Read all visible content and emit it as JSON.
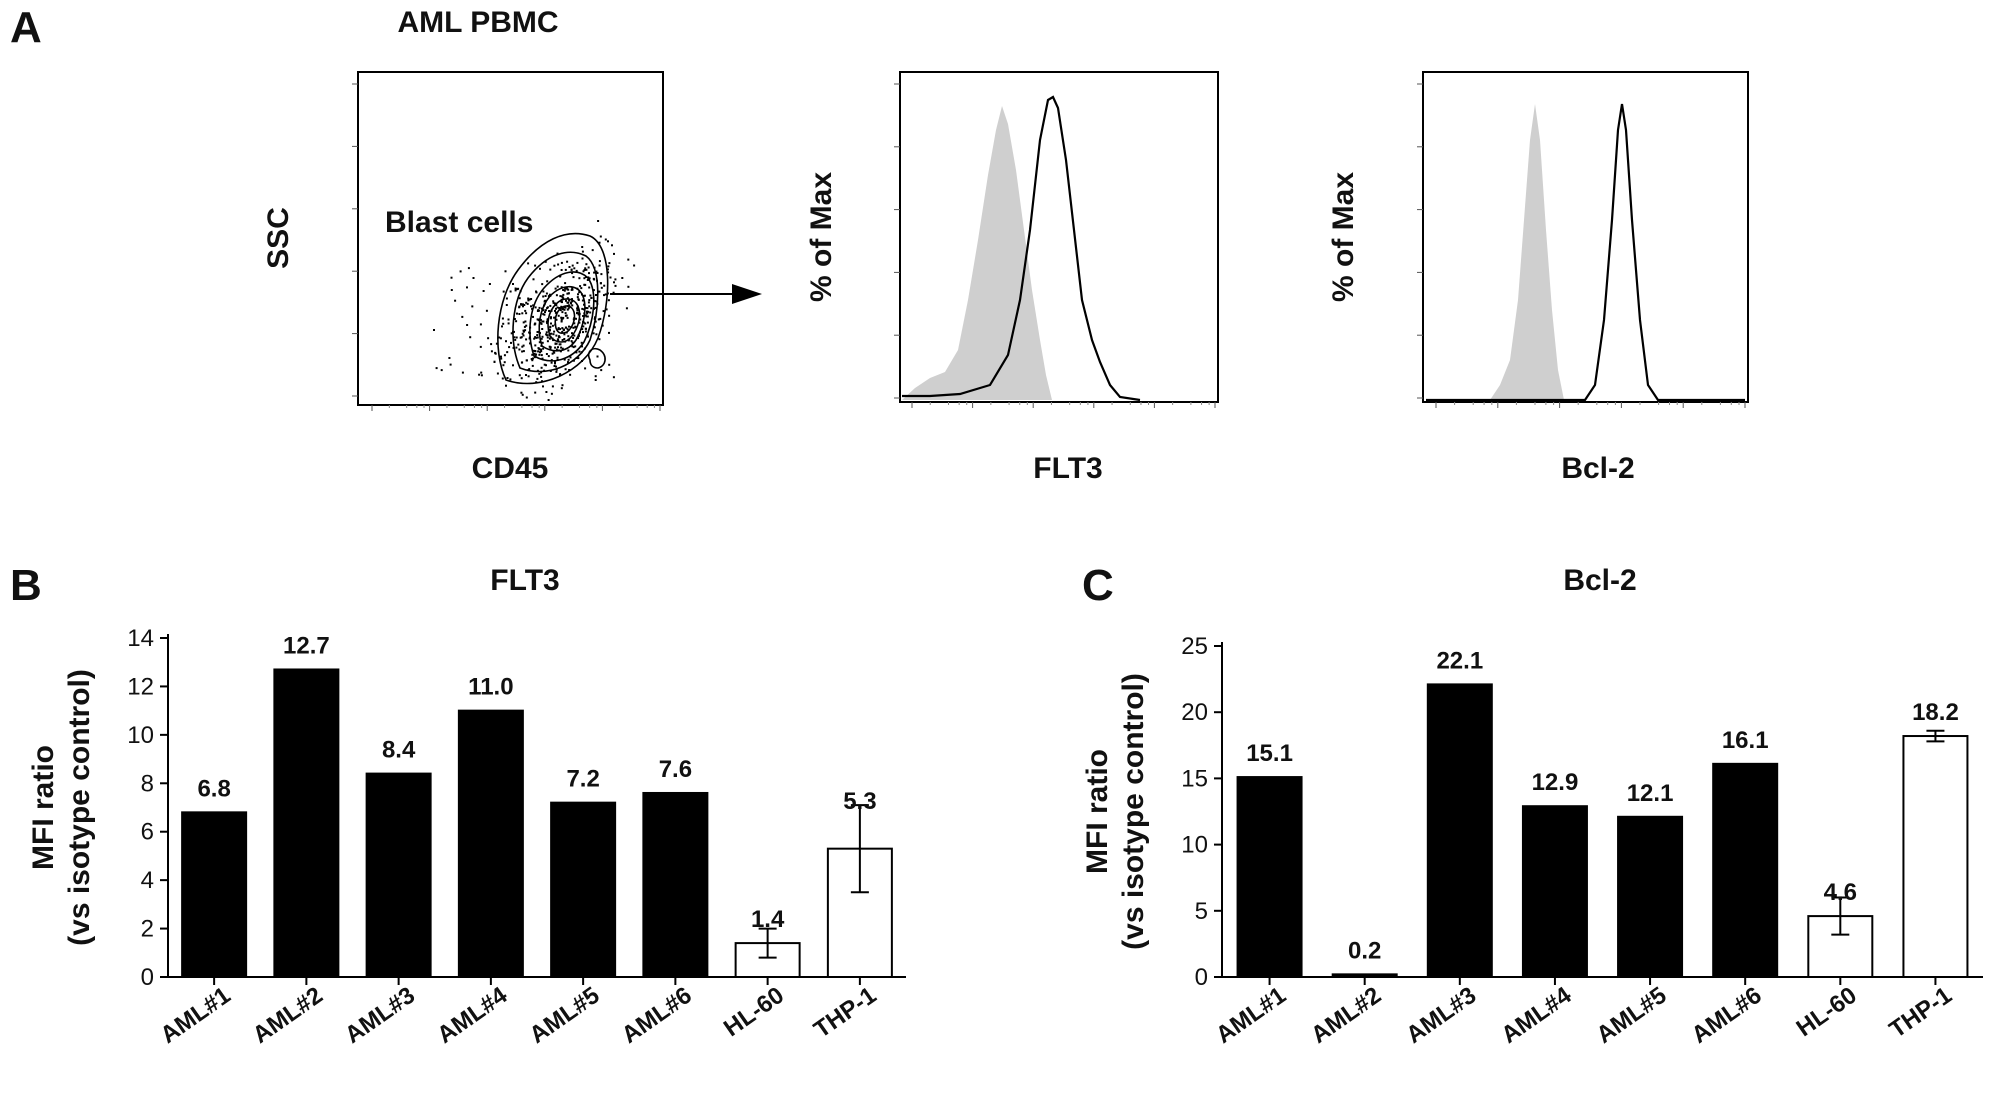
{
  "panel_letters": {
    "a": "A",
    "b": "B",
    "c": "C"
  },
  "facs": {
    "title": "AML PBMC",
    "gate_label": "Blast cells",
    "scatter": {
      "xlabel": "CD45",
      "ylabel": "SSC"
    },
    "hist1": {
      "xlabel": "FLT3",
      "ylabel": "% of Max"
    },
    "hist2": {
      "xlabel": "Bcl-2",
      "ylabel": "% of Max"
    }
  },
  "chart_data": [
    {
      "type": "bar",
      "title": "FLT3",
      "xlabel": "",
      "ylabel": "MFI ratio (vs isotype control)",
      "ylabel_lines": [
        "MFI ratio",
        "(vs isotype control)"
      ],
      "categories": [
        "AML#1",
        "AML#2",
        "AML#3",
        "AML#4",
        "AML#5",
        "AML#6",
        "HL-60",
        "THP-1"
      ],
      "values": [
        6.8,
        12.7,
        8.4,
        11.0,
        7.2,
        7.6,
        1.4,
        5.3
      ],
      "labels": [
        "6.8",
        "12.7",
        "8.4",
        "11.0",
        "7.2",
        "7.6",
        "1.4",
        "5.3"
      ],
      "errors": [
        null,
        null,
        null,
        null,
        null,
        null,
        0.6,
        1.8
      ],
      "fills": [
        "#000000",
        "#000000",
        "#000000",
        "#000000",
        "#000000",
        "#000000",
        "#ffffff",
        "#ffffff"
      ],
      "ylim": [
        0,
        14
      ],
      "yticks": [
        0,
        2,
        4,
        6,
        8,
        10,
        12,
        14
      ],
      "grid": false
    },
    {
      "type": "bar",
      "title": "Bcl-2",
      "xlabel": "",
      "ylabel": "MFI ratio (vs isotype control)",
      "ylabel_lines": [
        "MFI ratio",
        "(vs isotype control)"
      ],
      "categories": [
        "AML#1",
        "AML#2",
        "AML#3",
        "AML#4",
        "AML#5",
        "AML#6",
        "HL-60",
        "THP-1"
      ],
      "values": [
        15.1,
        0.2,
        22.1,
        12.9,
        12.1,
        16.1,
        4.6,
        18.2
      ],
      "labels": [
        "15.1",
        "0.2",
        "22.1",
        "12.9",
        "12.1",
        "16.1",
        "4.6",
        "18.2"
      ],
      "errors": [
        null,
        null,
        null,
        null,
        null,
        null,
        1.4,
        0.4
      ],
      "fills": [
        "#000000",
        "#000000",
        "#000000",
        "#000000",
        "#000000",
        "#000000",
        "#ffffff",
        "#ffffff"
      ],
      "ylim": [
        0,
        25
      ],
      "yticks": [
        0,
        5,
        10,
        15,
        20,
        25
      ],
      "grid": false
    }
  ]
}
